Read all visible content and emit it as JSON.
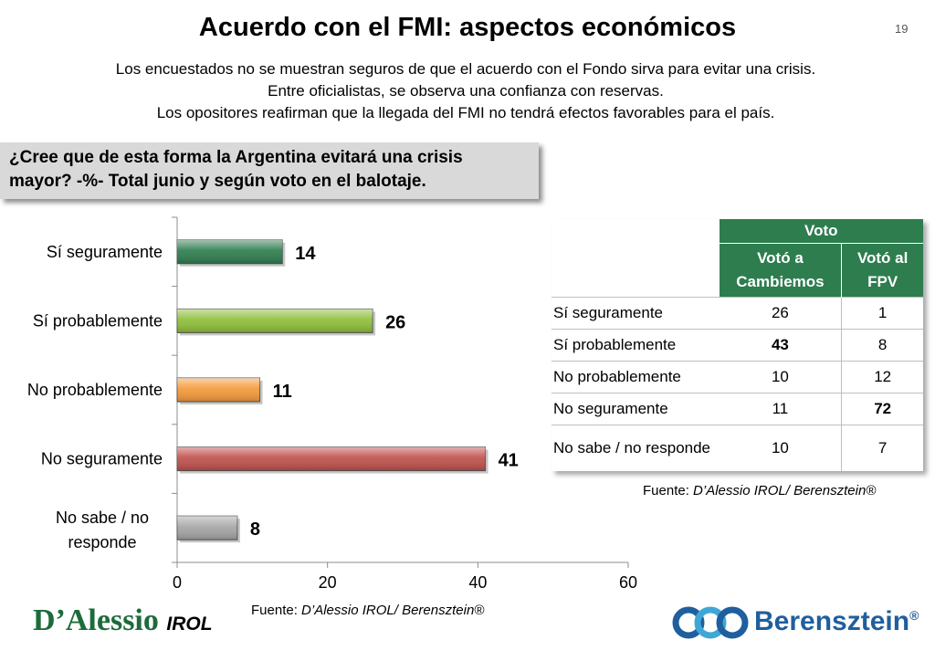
{
  "slide": {
    "title": "Acuerdo con el FMI: aspectos económicos",
    "page_number": "19",
    "subtitle_lines": [
      "Los encuestados no se muestran seguros de que el acuerdo con el Fondo sirva para evitar una crisis.",
      "Entre oficialistas, se observa una confianza con reservas.",
      "Los opositores reafirman que la llegada del FMI no tendrá efectos favorables para el país."
    ],
    "question": " ¿Cree que de esta forma la Argentina evitará una crisis mayor? -%- Total junio y según voto en el balotaje.",
    "source_prefix": "Fuente: ",
    "source_name": "D’Alessio IROL/ Berensztein®"
  },
  "chart_data": {
    "type": "bar",
    "orientation": "horizontal",
    "categories": [
      "Sí seguramente",
      "Sí probablemente",
      "No probablemente",
      "No seguramente",
      "No sabe / no responde"
    ],
    "values": [
      14,
      26,
      11,
      41,
      8
    ],
    "colors": [
      "#2e7d4f",
      "#8fbf3a",
      "#f59a3c",
      "#c0504d",
      "#a6a6a6"
    ],
    "xlim": [
      0,
      60
    ],
    "xticks": [
      "0",
      "20",
      "40",
      "60"
    ],
    "title": "",
    "xlabel": "",
    "ylabel": ""
  },
  "vote_table": {
    "group_header": "Voto",
    "columns": [
      "Votó a Cambiemos",
      "Votó al FPV"
    ],
    "rows": [
      {
        "label": "Sí seguramente",
        "cambiemos": "26",
        "fpv": "1",
        "bold": ""
      },
      {
        "label": "Sí probablemente",
        "cambiemos": "43",
        "fpv": "8",
        "bold": "cambiemos"
      },
      {
        "label": "No probablemente",
        "cambiemos": "10",
        "fpv": "12",
        "bold": ""
      },
      {
        "label": "No seguramente",
        "cambiemos": "11",
        "fpv": "72",
        "bold": "fpv"
      },
      {
        "label": "No sabe / no responde",
        "cambiemos": "10",
        "fpv": "7",
        "bold": ""
      }
    ]
  },
  "logos": {
    "left_main": "D’Alessio",
    "left_sub": "IROL",
    "right_word": "Berensztein",
    "right_mark": "®"
  },
  "colors": {
    "accent_green": "#2e7d4f",
    "brand_blue": "#1f5f9e"
  }
}
